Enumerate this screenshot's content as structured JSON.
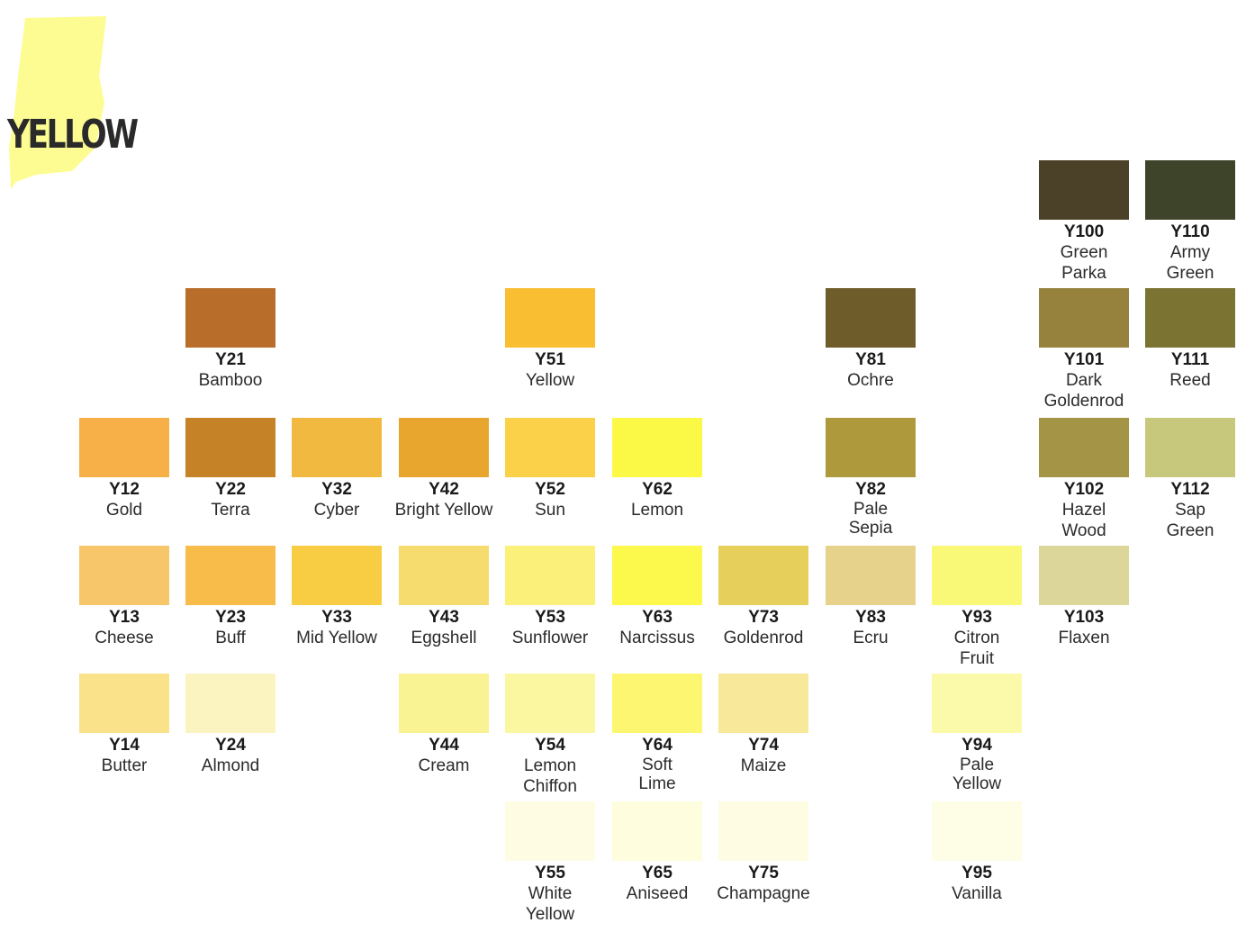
{
  "title": "YELLOW",
  "colors": {
    "Y21": {
      "code": "Y21",
      "name": "Bamboo",
      "hex": "#B86E2A"
    },
    "Y51": {
      "code": "Y51",
      "name": "Yellow",
      "hex": "#F9BE32"
    },
    "Y81": {
      "code": "Y81",
      "name": "Ochre",
      "hex": "#6E5D2A"
    },
    "Y100": {
      "code": "Y100",
      "name": "Green\nParka",
      "hex": "#4A4128"
    },
    "Y110": {
      "code": "Y110",
      "name": "Army\nGreen",
      "hex": "#3E4429"
    },
    "Y101": {
      "code": "Y101",
      "name": "Dark\nGoldenrod",
      "hex": "#96823D"
    },
    "Y111": {
      "code": "Y111",
      "name": "Reed",
      "hex": "#7A7332"
    },
    "Y12": {
      "code": "Y12",
      "name": "Gold",
      "hex": "#F6B047"
    },
    "Y22": {
      "code": "Y22",
      "name": "Terra",
      "hex": "#C68227"
    },
    "Y32": {
      "code": "Y32",
      "name": "Cyber",
      "hex": "#F1B93F"
    },
    "Y42": {
      "code": "Y42",
      "name": "Bright Yellow",
      "hex": "#E9A62E"
    },
    "Y52": {
      "code": "Y52",
      "name": "Sun",
      "hex": "#FAD148"
    },
    "Y62": {
      "code": "Y62",
      "name": "Lemon",
      "hex": "#FBF846"
    },
    "Y82": {
      "code": "Y82",
      "name": "Pale\nSepia",
      "hex": "#AE993D"
    },
    "Y102": {
      "code": "Y102",
      "name": "Hazel\nWood",
      "hex": "#A49546"
    },
    "Y112": {
      "code": "Y112",
      "name": "Sap\nGreen",
      "hex": "#C8C87C"
    },
    "Y13": {
      "code": "Y13",
      "name": "Cheese",
      "hex": "#F7C66A"
    },
    "Y23": {
      "code": "Y23",
      "name": "Buff",
      "hex": "#F8BC4B"
    },
    "Y33": {
      "code": "Y33",
      "name": "Mid Yellow",
      "hex": "#F8CD43"
    },
    "Y43": {
      "code": "Y43",
      "name": "Eggshell",
      "hex": "#F6DB6E"
    },
    "Y53": {
      "code": "Y53",
      "name": "Sunflower",
      "hex": "#FBF079"
    },
    "Y63": {
      "code": "Y63",
      "name": "Narcissus",
      "hex": "#FCF84C"
    },
    "Y73": {
      "code": "Y73",
      "name": "Goldenrod",
      "hex": "#E6CF5A"
    },
    "Y83": {
      "code": "Y83",
      "name": "Ecru",
      "hex": "#E6D28B"
    },
    "Y93": {
      "code": "Y93",
      "name": "Citron\nFruit",
      "hex": "#FAF877"
    },
    "Y103": {
      "code": "Y103",
      "name": "Flaxen",
      "hex": "#DCD69B"
    },
    "Y14": {
      "code": "Y14",
      "name": "Butter",
      "hex": "#F9E289"
    },
    "Y24": {
      "code": "Y24",
      "name": "Almond",
      "hex": "#FBF4C0"
    },
    "Y44": {
      "code": "Y44",
      "name": "Cream",
      "hex": "#FAF394"
    },
    "Y54": {
      "code": "Y54",
      "name": "Lemon\nChiffon",
      "hex": "#FBF7A0"
    },
    "Y64": {
      "code": "Y64",
      "name": "Soft\nLime",
      "hex": "#FCF670"
    },
    "Y74": {
      "code": "Y74",
      "name": "Maize",
      "hex": "#F8E89A"
    },
    "Y94": {
      "code": "Y94",
      "name": "Pale\nYellow",
      "hex": "#FBF9AA"
    },
    "Y55": {
      "code": "Y55",
      "name": "White\nYellow",
      "hex": "#FEFDE4"
    },
    "Y65": {
      "code": "Y65",
      "name": "Aniseed",
      "hex": "#FEFDDE"
    },
    "Y75": {
      "code": "Y75",
      "name": "Champagne",
      "hex": "#FEFDE3"
    },
    "Y95": {
      "code": "Y95",
      "name": "Vanilla",
      "hex": "#FEFDE6"
    }
  },
  "splash_color": "#FDFC92"
}
